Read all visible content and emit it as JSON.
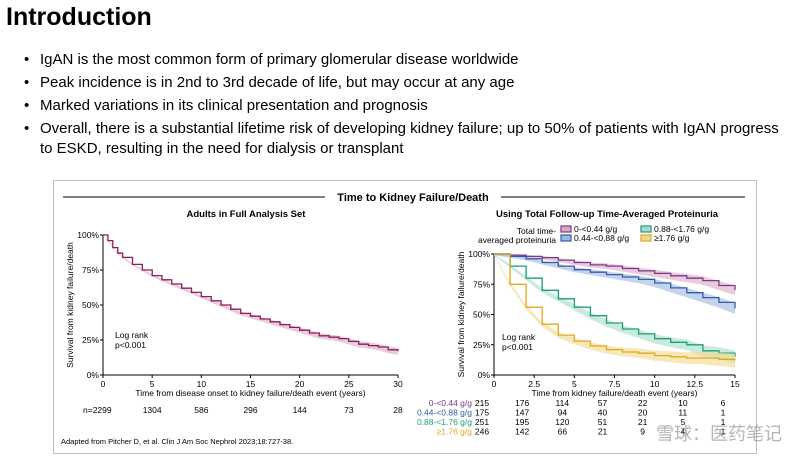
{
  "slide": {
    "title": "Introduction",
    "bullets": [
      "IgAN is the most common form of primary glomerular disease worldwide",
      "Peak incidence is in 2nd to 3rd decade of life, but may occur at any age",
      "Marked variations in its clinical presentation and prognosis",
      "Overall, there is a substantial lifetime risk of developing kidney failure; up to 50% of patients with IgAN progress to ESKD, resulting in the need for dialysis or transplant"
    ]
  },
  "figure": {
    "title": "Time to Kidney Failure/Death",
    "citation": "Adapted from Pitcher D, et al. Clin J Am Soc Nephrol 2023;18:727-38.",
    "watermark": "雪球：医药笔记"
  },
  "chart_data": [
    {
      "type": "line",
      "title": "Adults in Full Analysis Set",
      "xlabel": "Time from disease onset to kidney failure/death event (years)",
      "ylabel": "Survival from kidney failure/death",
      "xlim": [
        0,
        30
      ],
      "ylim": [
        0,
        100
      ],
      "x_ticks": [
        0,
        5,
        10,
        15,
        20,
        25,
        30
      ],
      "y_ticks": [
        0,
        25,
        50,
        75,
        100
      ],
      "y_tick_labels": [
        "0%",
        "25%",
        "50%",
        "75%",
        "100%"
      ],
      "annotation": [
        "Log rank",
        "p<0.001"
      ],
      "series": [
        {
          "name": "Adults",
          "color": "#8b1e5a",
          "band": "#d7a8c8",
          "x": [
            0,
            0.5,
            1,
            1.5,
            2,
            3,
            4,
            5,
            6,
            7,
            8,
            9,
            10,
            11,
            12,
            13,
            14,
            15,
            16,
            17,
            18,
            19,
            20,
            21,
            22,
            23,
            24,
            25,
            26,
            27,
            28,
            29,
            30
          ],
          "y": [
            100,
            96,
            91,
            87,
            84,
            79,
            75,
            71,
            68,
            65,
            62,
            59,
            56,
            53,
            50,
            47,
            44,
            42,
            40,
            38,
            36,
            34,
            32,
            30,
            28,
            27,
            26,
            24,
            22,
            21,
            20,
            18,
            17
          ]
        }
      ],
      "risk_table": {
        "label": "n=2299",
        "values": [
          "1304",
          "586",
          "296",
          "144",
          "73",
          "28"
        ]
      }
    },
    {
      "type": "line",
      "title": "Using Total Follow-up Time-Averaged Proteinuria",
      "legend_title": [
        "Total time-",
        "averaged proteinuria"
      ],
      "xlabel": "Time from kidney failure/death event (years)",
      "ylabel": "Survival from kidney failure/death",
      "xlim": [
        0,
        15
      ],
      "ylim": [
        0,
        100
      ],
      "x_ticks": [
        0,
        2.5,
        5,
        7.5,
        10,
        12.5,
        15
      ],
      "x_tick_labels": [
        "0",
        "2.5",
        "5",
        "7.5",
        "10",
        "12.5",
        "15"
      ],
      "y_ticks": [
        0,
        25,
        50,
        75,
        100
      ],
      "y_tick_labels": [
        "0%",
        "25%",
        "50%",
        "75%",
        "100%"
      ],
      "annotation": [
        "Log rank",
        "p<0.001"
      ],
      "x": [
        0,
        1,
        2,
        3,
        4,
        5,
        6,
        7,
        8,
        9,
        10,
        11,
        12,
        13,
        14,
        15
      ],
      "series": [
        {
          "name": "0-<0.44 g/g",
          "color": "#7a3a8c",
          "band": "#d9a9c4",
          "y": [
            100,
            99,
            98,
            97,
            95,
            93,
            91,
            90,
            88,
            86,
            84,
            82,
            80,
            78,
            74,
            70
          ]
        },
        {
          "name": "0.44-<0.88 g/g",
          "color": "#2e5fa8",
          "band": "#9fb6e0",
          "y": [
            100,
            98,
            96,
            93,
            90,
            87,
            85,
            83,
            81,
            79,
            76,
            72,
            68,
            64,
            60,
            55
          ]
        },
        {
          "name": "0.88-<1.76 g/g",
          "color": "#1a9e7a",
          "band": "#a6dcc8",
          "y": [
            100,
            90,
            80,
            70,
            63,
            56,
            49,
            43,
            38,
            34,
            30,
            27,
            25,
            20,
            18,
            15
          ]
        },
        {
          "name": "≥1.76 g/g",
          "color": "#e0a91d",
          "band": "#f2d88f",
          "y": [
            100,
            75,
            56,
            42,
            33,
            28,
            24,
            21,
            19,
            18,
            16,
            15,
            14,
            14,
            13,
            12
          ]
        }
      ],
      "risk_table": [
        {
          "label": "0-<0.44 g/g",
          "values": [
            "215",
            "176",
            "114",
            "57",
            "22",
            "10",
            "6"
          ]
        },
        {
          "label": "0.44-<0.88 g/g",
          "values": [
            "175",
            "147",
            "94",
            "40",
            "20",
            "11",
            "1"
          ]
        },
        {
          "label": "0.88-<1.76 g/g",
          "values": [
            "251",
            "195",
            "120",
            "51",
            "21",
            "5",
            "1"
          ]
        },
        {
          "label": "≥1.76 g/g",
          "values": [
            "246",
            "142",
            "66",
            "21",
            "9",
            "4",
            "1"
          ]
        }
      ]
    }
  ]
}
